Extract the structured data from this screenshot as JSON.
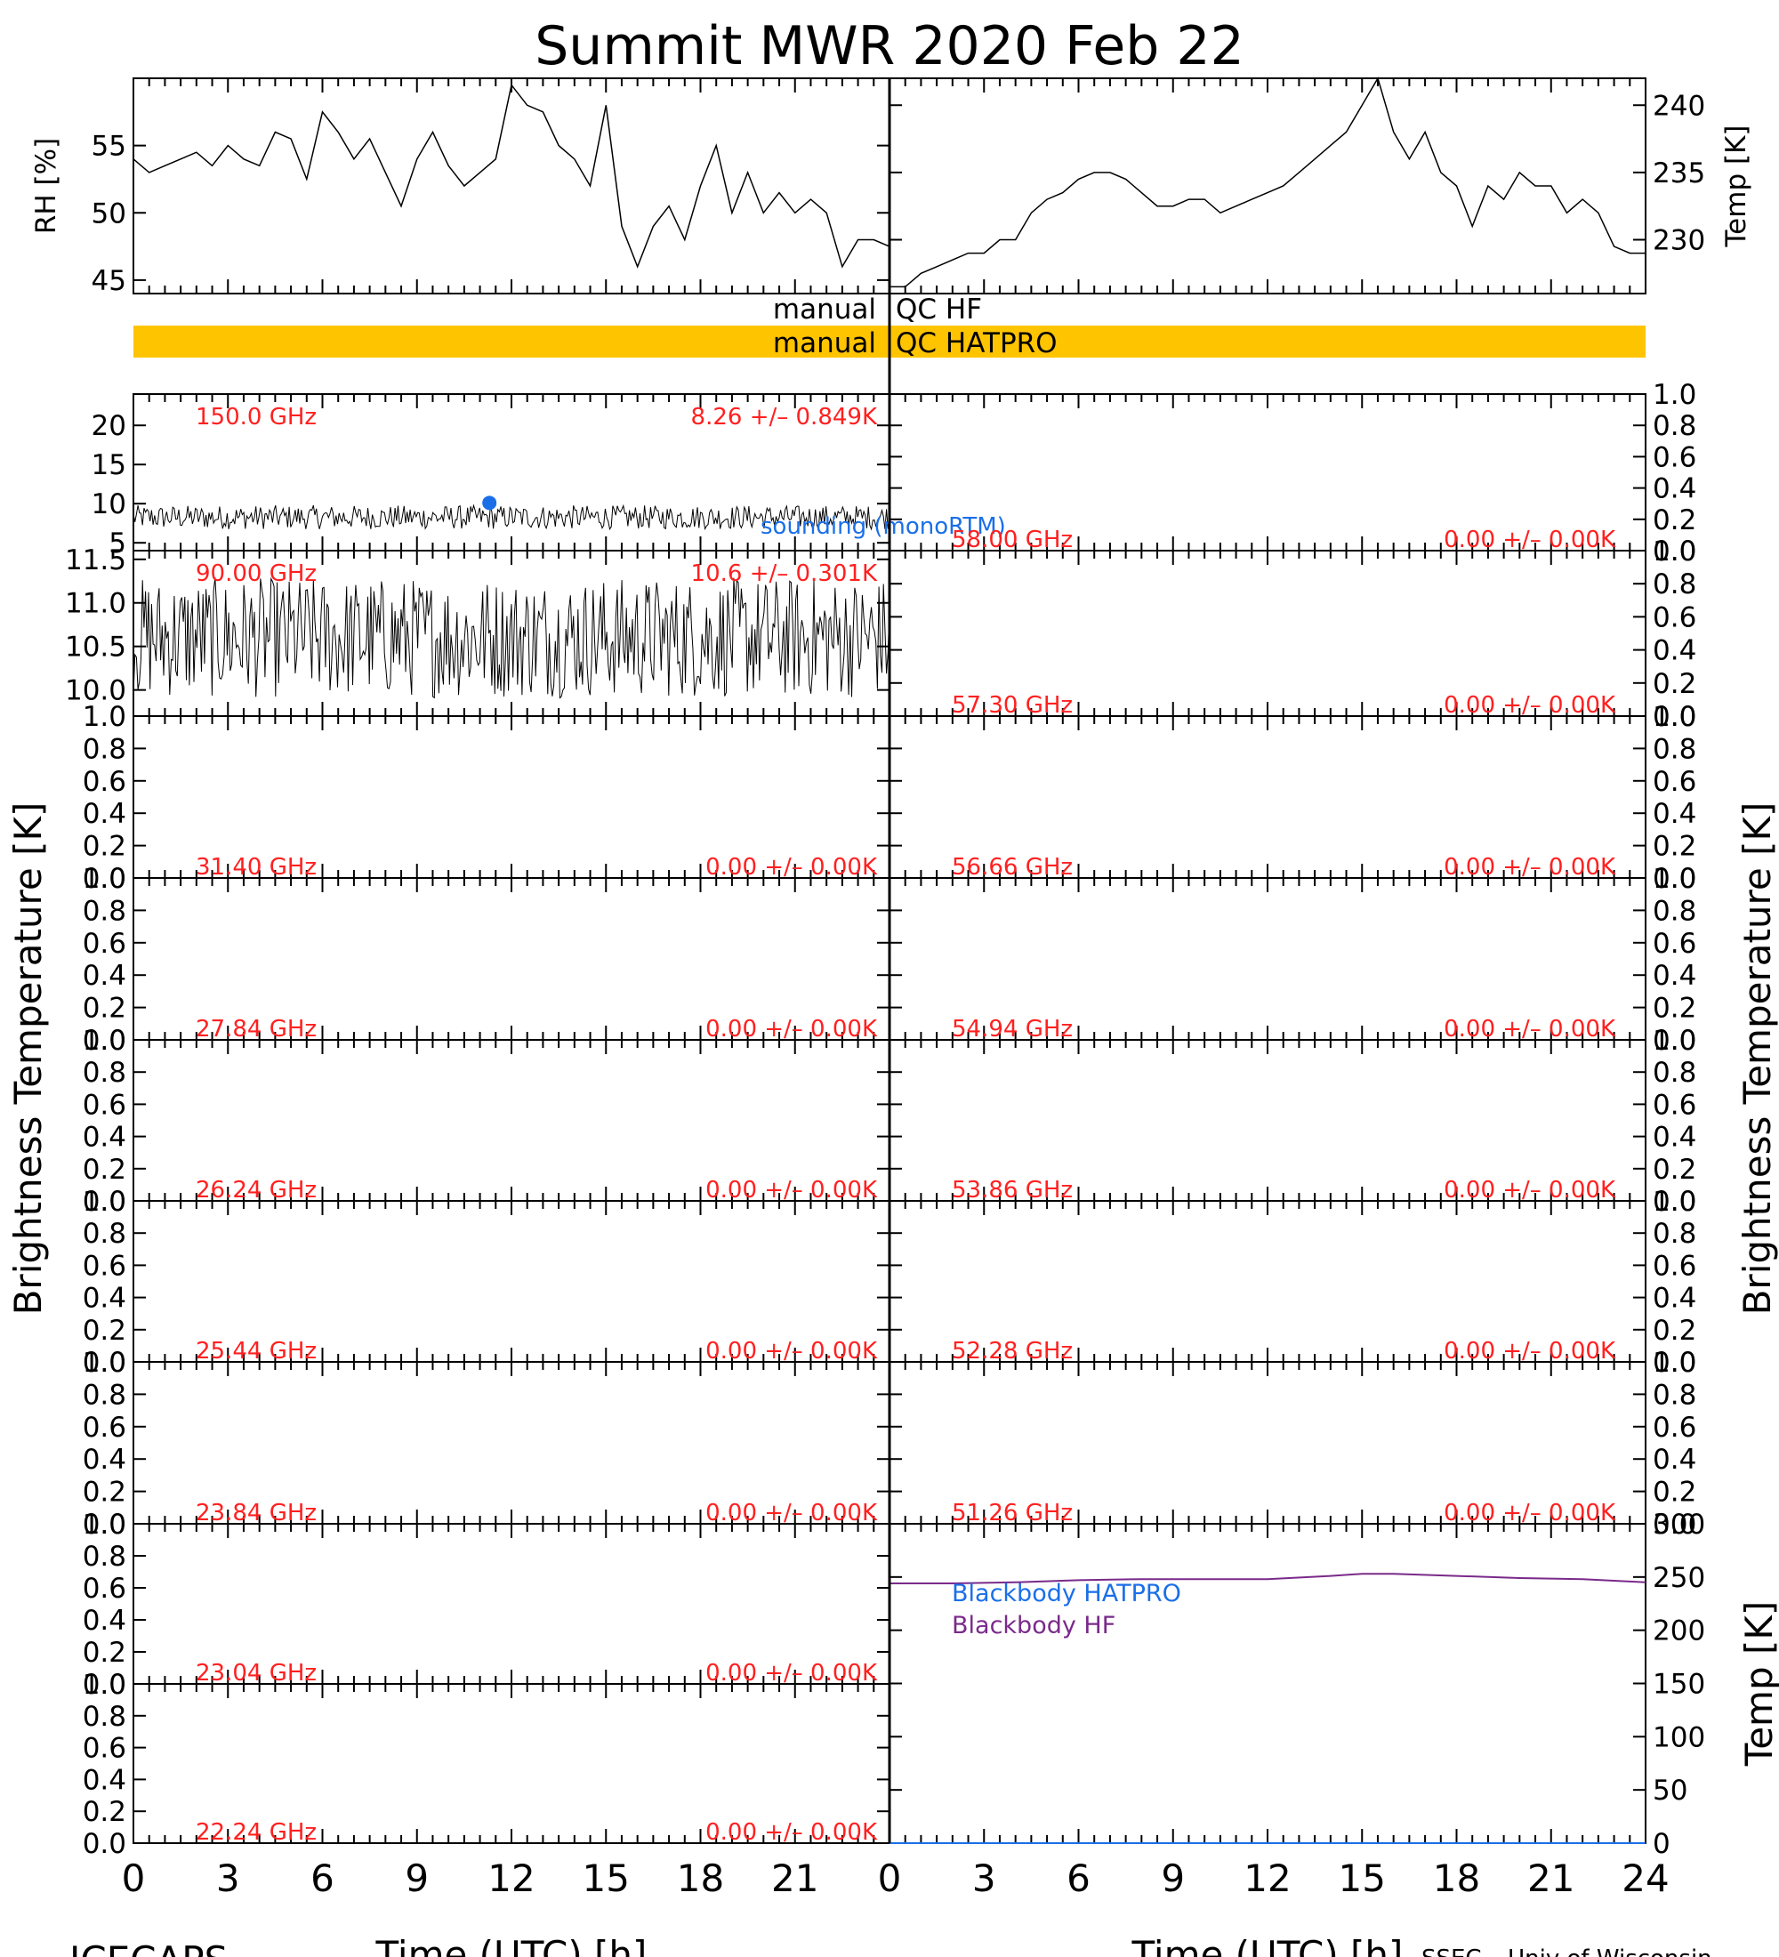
{
  "title": "Summit MWR 2020 Feb 22",
  "footer_left": "ICECAPS",
  "footer_right": "SSEC – Univ of Wisconsin",
  "colors": {
    "qc_bar": "#ffc400",
    "red_text": "#ff2020",
    "blue": "#1a6fe8",
    "purple": "#7a2a8a",
    "line": "#000000"
  },
  "qc": {
    "hf_label_left": "manual",
    "hf_label_right": "QC HF",
    "hatpro_label_left": "manual",
    "hatpro_label_right": "QC HATPRO"
  },
  "x_axis": {
    "label": "Time (UTC) [h]",
    "left_ticks": [
      "0",
      "3",
      "6",
      "9",
      "12",
      "15",
      "18",
      "21"
    ],
    "right_ticks": [
      "0",
      "3",
      "6",
      "9",
      "12",
      "15",
      "18",
      "21",
      "24"
    ]
  },
  "left_y_title": "Brightness Temperature [K]",
  "right_y_title": "Brightness Temperature [K]",
  "chart_data": [
    {
      "type": "line",
      "name": "RH",
      "ylabel": "RH [%]",
      "ylim": [
        44,
        60
      ],
      "yticks": [
        "45",
        "50",
        "55"
      ],
      "x": [
        0,
        0.5,
        1,
        1.5,
        2,
        2.5,
        3,
        3.5,
        4,
        4.5,
        5,
        5.5,
        6,
        6.5,
        7,
        7.5,
        8,
        8.5,
        9,
        9.5,
        10,
        10.5,
        11,
        11.5,
        12,
        12.5,
        13,
        13.5,
        14,
        14.5,
        15,
        15.5,
        16,
        16.5,
        17,
        17.5,
        18,
        18.5,
        19,
        19.5,
        20,
        20.5,
        21,
        21.5,
        22,
        22.5,
        23,
        23.5,
        24
      ],
      "y": [
        54,
        53,
        53.5,
        54,
        54.5,
        53.5,
        55,
        54,
        53.5,
        56,
        55.5,
        52.5,
        57.5,
        56,
        54,
        55.5,
        53,
        50.5,
        54,
        56,
        53.5,
        52,
        53,
        54,
        59.5,
        58,
        57.5,
        55,
        54,
        52,
        58,
        49,
        46,
        49,
        50.5,
        48,
        52,
        55,
        50,
        53,
        50,
        51.5,
        50,
        51,
        50,
        46,
        48,
        48,
        47.5
      ]
    },
    {
      "type": "line",
      "name": "Temp",
      "ylabel": "Temp [K]",
      "ylim": [
        226,
        242
      ],
      "yticks": [
        "230",
        "235",
        "240"
      ],
      "x": [
        0,
        0.5,
        1,
        1.5,
        2,
        2.5,
        3,
        3.5,
        4,
        4.5,
        5,
        5.5,
        6,
        6.5,
        7,
        7.5,
        8,
        8.5,
        9,
        9.5,
        10,
        10.5,
        11,
        11.5,
        12,
        12.5,
        13,
        13.5,
        14,
        14.5,
        15,
        15.5,
        16,
        16.5,
        17,
        17.5,
        18,
        18.5,
        19,
        19.5,
        20,
        20.5,
        21,
        21.5,
        22,
        22.5,
        23,
        23.5,
        24
      ],
      "y": [
        226.5,
        226.5,
        227.5,
        228,
        228.5,
        229,
        229,
        230,
        230,
        232,
        233,
        233.5,
        234.5,
        235,
        235,
        234.5,
        233.5,
        232.5,
        232.5,
        233,
        233,
        232,
        232.5,
        233,
        233.5,
        234,
        235,
        236,
        237,
        238,
        240,
        242,
        238,
        236,
        238,
        235,
        234,
        231,
        234,
        233,
        235,
        234,
        234,
        232,
        233,
        232,
        229.5,
        229,
        229
      ]
    },
    {
      "type": "scatter",
      "name": "150.0 GHz",
      "frequency_label": "150.0 GHz",
      "stats_label": "8.26 +/– 0.849K",
      "ylim": [
        4,
        24
      ],
      "yticks": [
        "5",
        "10",
        "15",
        "20"
      ],
      "mean": 8.26,
      "std": 0.849,
      "sounding": {
        "label": "sounding (monoRTM)",
        "x": 11.3,
        "y": 10.1
      }
    },
    {
      "type": "scatter",
      "name": "90.00 GHz",
      "frequency_label": "90.00 GHz",
      "stats_label": "10.6 +/– 0.301K",
      "ylim": [
        9.7,
        11.6
      ],
      "yticks": [
        "10.0",
        "10.5",
        "11.0",
        "11.5"
      ],
      "mean": 10.6,
      "std": 0.301
    },
    {
      "type": "line",
      "name": "31.40 GHz",
      "frequency_label": "31.40 GHz",
      "stats_label": "0.00 +/– 0.00K",
      "ylim": [
        0,
        1
      ],
      "yticks": [
        "0.0",
        "0.2",
        "0.4",
        "0.6",
        "0.8",
        "1.0"
      ]
    },
    {
      "type": "line",
      "name": "27.84 GHz",
      "frequency_label": "27.84 GHz",
      "stats_label": "0.00 +/– 0.00K",
      "ylim": [
        0,
        1
      ],
      "yticks": [
        "0.0",
        "0.2",
        "0.4",
        "0.6",
        "0.8",
        "1.0"
      ]
    },
    {
      "type": "line",
      "name": "26.24 GHz",
      "frequency_label": "26.24 GHz",
      "stats_label": "0.00 +/– 0.00K",
      "ylim": [
        0,
        1
      ],
      "yticks": [
        "0.0",
        "0.2",
        "0.4",
        "0.6",
        "0.8",
        "1.0"
      ]
    },
    {
      "type": "line",
      "name": "25.44 GHz",
      "frequency_label": "25.44 GHz",
      "stats_label": "0.00 +/– 0.00K",
      "ylim": [
        0,
        1
      ],
      "yticks": [
        "0.0",
        "0.2",
        "0.4",
        "0.6",
        "0.8",
        "1.0"
      ]
    },
    {
      "type": "line",
      "name": "23.84 GHz",
      "frequency_label": "23.84 GHz",
      "stats_label": "0.00 +/– 0.00K",
      "ylim": [
        0,
        1
      ],
      "yticks": [
        "0.0",
        "0.2",
        "0.4",
        "0.6",
        "0.8",
        "1.0"
      ]
    },
    {
      "type": "line",
      "name": "23.04 GHz",
      "frequency_label": "23.04 GHz",
      "stats_label": "0.00 +/– 0.00K",
      "ylim": [
        0,
        1
      ],
      "yticks": [
        "0.0",
        "0.2",
        "0.4",
        "0.6",
        "0.8",
        "1.0"
      ]
    },
    {
      "type": "line",
      "name": "22.24 GHz",
      "frequency_label": "22.24 GHz",
      "stats_label": "0.00 +/– 0.00K",
      "ylim": [
        0,
        1
      ],
      "yticks": [
        "0.0",
        "0.2",
        "0.4",
        "0.6",
        "0.8",
        "1.0"
      ]
    },
    {
      "type": "line",
      "name": "58.00 GHz",
      "frequency_label": "58.00 GHz",
      "stats_label": "0.00 +/– 0.00K",
      "ylim": [
        0,
        1
      ],
      "yticks": [
        "0.0",
        "0.2",
        "0.4",
        "0.6",
        "0.8",
        "1.0"
      ]
    },
    {
      "type": "line",
      "name": "57.30 GHz",
      "frequency_label": "57.30 GHz",
      "stats_label": "0.00 +/– 0.00K",
      "ylim": [
        0,
        1
      ],
      "yticks": [
        "0.0",
        "0.2",
        "0.4",
        "0.6",
        "0.8",
        "1.0"
      ]
    },
    {
      "type": "line",
      "name": "56.66 GHz",
      "frequency_label": "56.66 GHz",
      "stats_label": "0.00 +/– 0.00K",
      "ylim": [
        0,
        1
      ],
      "yticks": [
        "0.0",
        "0.2",
        "0.4",
        "0.6",
        "0.8",
        "1.0"
      ]
    },
    {
      "type": "line",
      "name": "54.94 GHz",
      "frequency_label": "54.94 GHz",
      "stats_label": "0.00 +/– 0.00K",
      "ylim": [
        0,
        1
      ],
      "yticks": [
        "0.0",
        "0.2",
        "0.4",
        "0.6",
        "0.8",
        "1.0"
      ]
    },
    {
      "type": "line",
      "name": "53.86 GHz",
      "frequency_label": "53.86 GHz",
      "stats_label": "0.00 +/– 0.00K",
      "ylim": [
        0,
        1
      ],
      "yticks": [
        "0.0",
        "0.2",
        "0.4",
        "0.6",
        "0.8",
        "1.0"
      ]
    },
    {
      "type": "line",
      "name": "52.28 GHz",
      "frequency_label": "52.28 GHz",
      "stats_label": "0.00 +/– 0.00K",
      "ylim": [
        0,
        1
      ],
      "yticks": [
        "0.0",
        "0.2",
        "0.4",
        "0.6",
        "0.8",
        "1.0"
      ]
    },
    {
      "type": "line",
      "name": "51.26 GHz",
      "frequency_label": "51.26 GHz",
      "stats_label": "0.00 +/– 0.00K",
      "ylim": [
        0,
        1
      ],
      "yticks": [
        "0.0",
        "0.2",
        "0.4",
        "0.6",
        "0.8",
        "1.0"
      ]
    },
    {
      "type": "line",
      "name": "Blackbody",
      "ylabel": "Temp [K]",
      "ylim": [
        0,
        300
      ],
      "yticks": [
        "0",
        "50",
        "100",
        "150",
        "200",
        "250",
        "300"
      ],
      "legend": [
        "Blackbody HATPRO",
        "Blackbody HF"
      ],
      "x": [
        0,
        2,
        4,
        6,
        8,
        10,
        12,
        14,
        15,
        16,
        18,
        20,
        22,
        24
      ],
      "y_hf": [
        244,
        244,
        245,
        247,
        248,
        248,
        248,
        251,
        253,
        253,
        251,
        249,
        248,
        245
      ],
      "y_hatpro": [
        0,
        0,
        0,
        0,
        0,
        0,
        0,
        0,
        0,
        0,
        0,
        0,
        0,
        0
      ]
    }
  ]
}
